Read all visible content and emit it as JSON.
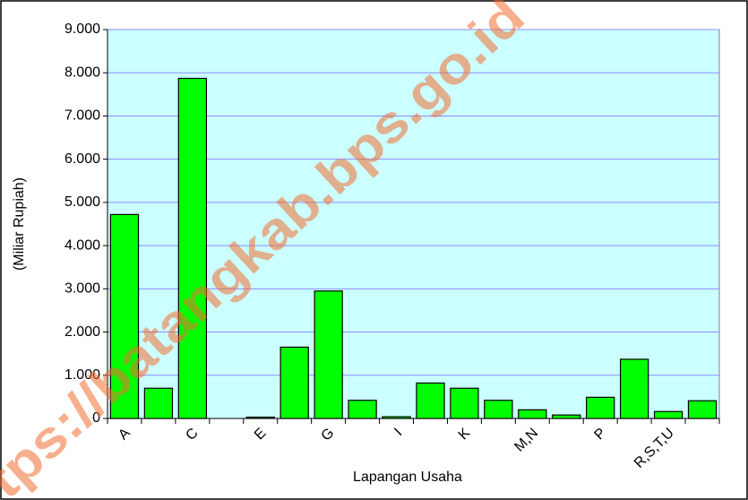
{
  "chart_data": {
    "type": "bar",
    "y_axis_label": "(Miliar Rupiah)",
    "x_axis_label": "Lapangan Usaha",
    "watermark": "tps://batangkab.bps.go.id",
    "categories": [
      "A",
      null,
      "C",
      null,
      "E",
      null,
      "G",
      null,
      "I",
      null,
      "K",
      null,
      "M,N",
      null,
      "P",
      null,
      "R,S,T,U",
      null
    ],
    "values": [
      4720,
      700,
      7870,
      0,
      30,
      1650,
      2950,
      420,
      40,
      820,
      700,
      420,
      200,
      80,
      490,
      1370,
      160,
      410
    ],
    "color": "#00ff00",
    "ylim": [
      0,
      9000
    ],
    "yticks": [
      0,
      {
        "value": 1000,
        "label": "1.000"
      },
      {
        "value": 2000,
        "label": "2.000"
      },
      {
        "value": 3000,
        "label": "3.000"
      },
      {
        "value": 4000,
        "label": "4.000"
      },
      {
        "value": 5000,
        "label": "5.000"
      },
      {
        "value": 6000,
        "label": "6.000"
      },
      {
        "value": 7000,
        "label": "7.000"
      },
      {
        "value": 8000,
        "label": "8.000"
      },
      {
        "value": 9000,
        "label": "9.000"
      }
    ],
    "grid": true
  }
}
